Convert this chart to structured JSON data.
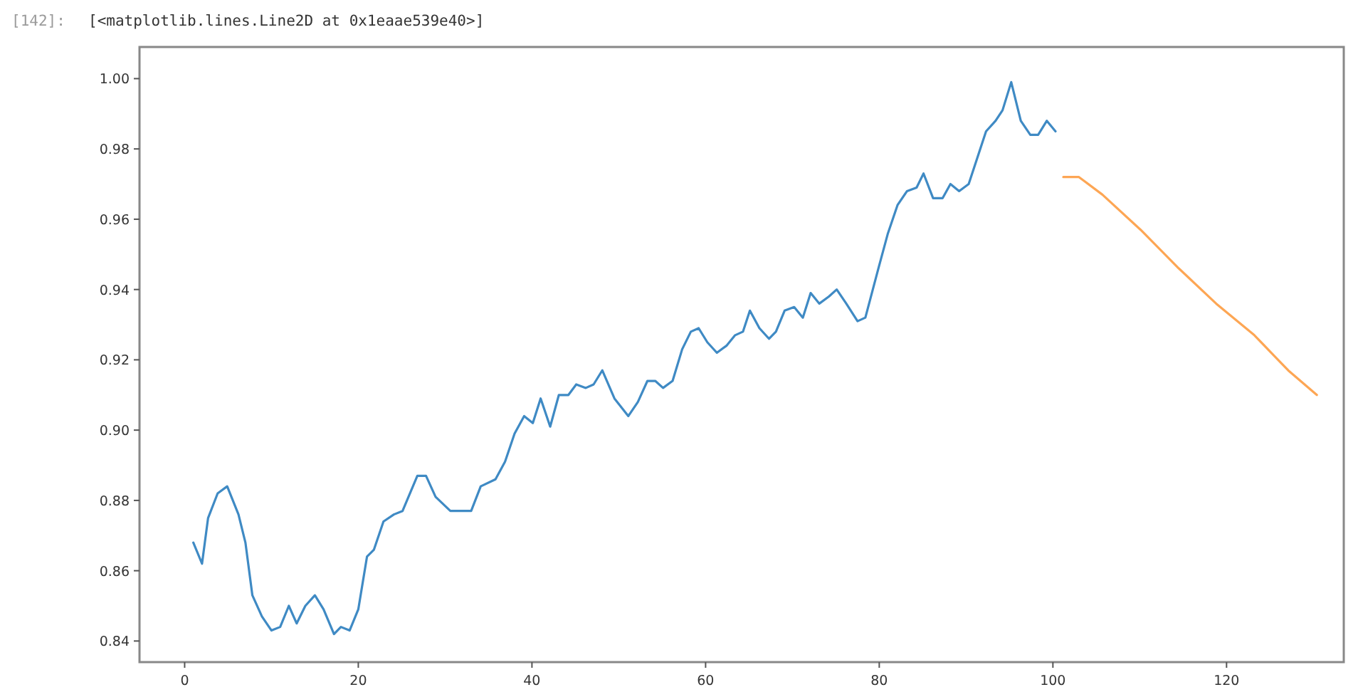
{
  "chart_data": {
    "type": "line",
    "annotations": [
      "[142]:",
      "[<matplotlib.lines.Line2D at 0x1eaae539e40>]"
    ],
    "xlim": [
      -5.2,
      133.5
    ],
    "ylim": [
      0.834,
      1.009
    ],
    "xticks": [
      0,
      20,
      40,
      60,
      80,
      100,
      120
    ],
    "yticks": [
      {
        "value": 0.84,
        "label": "0.84"
      },
      {
        "value": 0.86,
        "label": "0.86"
      },
      {
        "value": 0.88,
        "label": "0.88"
      },
      {
        "value": 0.9,
        "label": "0.90"
      },
      {
        "value": 0.92,
        "label": "0.92"
      },
      {
        "value": 0.94,
        "label": "0.94"
      },
      {
        "value": 0.96,
        "label": "0.96"
      },
      {
        "value": 0.98,
        "label": "0.98"
      },
      {
        "value": 1.0,
        "label": "1.00"
      }
    ],
    "grid": false,
    "line_style": "solid",
    "marker": "none",
    "series": [
      {
        "color": "#3f8ac4",
        "x": [
          1,
          2,
          2.7,
          3.8,
          4.9,
          6.2,
          7,
          7.8,
          8.9,
          10,
          11,
          12,
          12.9,
          13.9,
          15,
          16,
          17.2,
          18,
          19,
          20,
          21,
          21.8,
          22.9,
          24.1,
          25.1,
          26.8,
          27.8,
          28.9,
          30.6,
          33,
          34.1,
          35.8,
          36.9,
          38,
          39.1,
          40.1,
          41,
          42.1,
          43.1,
          44.2,
          45.1,
          46.2,
          47.1,
          48.1,
          49.5,
          51.1,
          52.2,
          53.3,
          54.2,
          55.1,
          56.2,
          57.3,
          58.3,
          59.2,
          60.2,
          61.3,
          62.4,
          63.4,
          64.3,
          65.1,
          66.2,
          67.3,
          68.1,
          69.1,
          70.2,
          71.2,
          72.1,
          73.1,
          74.2,
          75.1,
          76.2,
          77.5,
          78.4,
          79.9,
          81,
          82.1,
          83.2,
          84.3,
          85.1,
          86.2,
          87.3,
          88.2,
          89.2,
          90.3,
          92.3,
          93.4,
          94.2,
          95.2,
          96.3,
          97.4,
          98.3,
          99.3,
          100.3
        ],
        "values": [
          0.868,
          0.862,
          0.875,
          0.882,
          0.884,
          0.876,
          0.868,
          0.853,
          0.847,
          0.843,
          0.844,
          0.85,
          0.845,
          0.85,
          0.853,
          0.849,
          0.842,
          0.844,
          0.843,
          0.849,
          0.864,
          0.866,
          0.874,
          0.876,
          0.877,
          0.887,
          0.887,
          0.881,
          0.877,
          0.877,
          0.884,
          0.886,
          0.891,
          0.899,
          0.904,
          0.902,
          0.909,
          0.901,
          0.91,
          0.91,
          0.913,
          0.912,
          0.913,
          0.917,
          0.909,
          0.904,
          0.908,
          0.914,
          0.914,
          0.912,
          0.914,
          0.923,
          0.928,
          0.929,
          0.925,
          0.922,
          0.924,
          0.927,
          0.928,
          0.934,
          0.929,
          0.926,
          0.928,
          0.934,
          0.935,
          0.932,
          0.939,
          0.936,
          0.938,
          0.94,
          0.936,
          0.931,
          0.932,
          0.946,
          0.956,
          0.964,
          0.968,
          0.969,
          0.973,
          0.966,
          0.966,
          0.97,
          0.968,
          0.97,
          0.985,
          0.988,
          0.991,
          0.999,
          0.988,
          0.984,
          0.984,
          0.988,
          0.985
        ]
      },
      {
        "color": "#fda654",
        "x": [
          101.2,
          103,
          105.7,
          110.1,
          114.5,
          118.8,
          123.2,
          127.1,
          130.4
        ],
        "values": [
          0.972,
          0.972,
          0.967,
          0.957,
          0.946,
          0.936,
          0.927,
          0.917,
          0.91
        ]
      }
    ]
  }
}
